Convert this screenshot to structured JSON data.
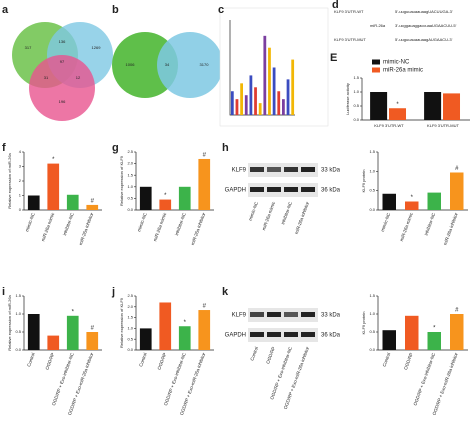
{
  "figure": {
    "panels": [
      "a",
      "b",
      "c",
      "d",
      "E",
      "f",
      "g",
      "h",
      "i",
      "j",
      "k"
    ],
    "venn_a": [
      "317",
      "136",
      "1269",
      "97",
      "31",
      "12",
      "196"
    ],
    "venn_b": [
      "1006",
      "34",
      "3170"
    ],
    "sequences": {
      "wt_label": "KLF9 3'UTR-WT",
      "wt": "5'-uuguuauaauaagUACUUGA-3'",
      "mir_label": "miR-26a",
      "mir": "3'-ucggauaggaccuaaUGAACUU-5'",
      "mut_label": "KLF9 3'UTR-MUT",
      "mut": "5'-uuguuauaauaagAUGAACU-3'"
    },
    "blot_h": {
      "rows": [
        "KLF9",
        "GAPDH"
      ],
      "sizes": [
        "33 kDa",
        "36 kDa"
      ]
    },
    "blot_k": {
      "rows": [
        "KLF9",
        "GAPDH"
      ],
      "sizes": [
        "33 kDa",
        "36 kDa"
      ]
    }
  },
  "chart_data": [
    {
      "type": "bar",
      "values": [
        0.3,
        0.2,
        0.4,
        0.25,
        0.5,
        0.35,
        0.15,
        1.0,
        0.85,
        0.6,
        0.3,
        0.2,
        0.45,
        0.7
      ],
      "colors": [
        "#3b4cc0",
        "#e03c31",
        "#f2b705",
        "#7b3fa0",
        "#3b4cc0",
        "#e03c31",
        "#f2b705",
        "#7b3fa0",
        "#f2b705",
        "#3b4cc0",
        "#e03c31",
        "#7b3fa0",
        "#3b4cc0",
        "#f2b705"
      ],
      "ylim": [
        0,
        1.2
      ]
    },
    {
      "type": "grouped-bar",
      "ylabel": "Luciferase activity",
      "categories": [
        "KLF9 3'UTR-WT",
        "KLF9 3'UTR-MUT"
      ],
      "series": [
        {
          "name": "mimic-NC",
          "color": "#111111",
          "values": [
            1.0,
            1.0
          ],
          "marks": [
            null,
            null
          ]
        },
        {
          "name": "miR-26a mimic",
          "color": "#f05a22",
          "values": [
            0.42,
            0.95
          ],
          "marks": [
            "*",
            null
          ]
        }
      ],
      "ylim": [
        0,
        1.5
      ],
      "yticks": [
        {
          "value": 0,
          "label": "0.0"
        },
        0.5,
        {
          "value": 1,
          "label": "1.0"
        },
        1.5
      ],
      "legend": "top"
    },
    {
      "type": "bar",
      "ylabel": "Relative expression of miR-26a",
      "categories": [
        "mimic-NC",
        "miR-26a mimic",
        "inhibitor-NC",
        "miR-26a inhibitor"
      ],
      "values": [
        1.0,
        3.2,
        1.05,
        0.35
      ],
      "colors": [
        "#111111",
        "#f05a22",
        "#3cb34a",
        "#f7941d"
      ],
      "marks": [
        null,
        "*",
        null,
        "#"
      ],
      "ylim": [
        0,
        4
      ],
      "yticks": [
        0,
        1,
        2,
        3,
        4
      ]
    },
    {
      "type": "bar",
      "ylabel": "Relative expression of KLF9",
      "categories": [
        "mimic-NC",
        "miR-26a mimic",
        "inhibitor-NC",
        "miR-26a inhibitor"
      ],
      "values": [
        1.0,
        0.45,
        1.0,
        2.2
      ],
      "colors": [
        "#111111",
        "#f05a22",
        "#3cb34a",
        "#f7941d"
      ],
      "marks": [
        null,
        "*",
        null,
        "#"
      ],
      "ylim": [
        0,
        2.5
      ],
      "yticks": [
        {
          "value": 0,
          "label": "0.0"
        },
        0.5,
        {
          "value": 1,
          "label": "1.0"
        },
        1.5,
        {
          "value": 2,
          "label": "2.0"
        },
        2.5
      ]
    },
    {
      "type": "bar",
      "ylabel": "KLF9 protein",
      "categories": [
        "mimic-NC",
        "miR-26a mimic",
        "inhibitor-NC",
        "miR-26a inhibitor"
      ],
      "values": [
        0.42,
        0.22,
        0.45,
        0.97
      ],
      "colors": [
        "#111111",
        "#f05a22",
        "#3cb34a",
        "#f7941d"
      ],
      "marks": [
        null,
        "*",
        null,
        "#"
      ],
      "ylim": [
        0,
        1.5
      ],
      "yticks": [
        {
          "value": 0,
          "label": "0.0"
        },
        0.5,
        {
          "value": 1,
          "label": "1.0"
        },
        1.5
      ]
    },
    {
      "type": "bar",
      "ylabel": "Relative expression of miR-26a",
      "categories": [
        "Control",
        "OGD/RP",
        "OGD/RP + Exo-inhibitor-NC",
        "OGD/RP + Exo-miR-26a inhibitor"
      ],
      "values": [
        1.0,
        0.4,
        0.95,
        0.5
      ],
      "colors": [
        "#111111",
        "#f05a22",
        "#3cb34a",
        "#f7941d"
      ],
      "marks": [
        null,
        null,
        "*",
        "#"
      ],
      "ylim": [
        0,
        1.5
      ],
      "yticks": [
        {
          "value": 0,
          "label": "0.0"
        },
        0.5,
        {
          "value": 1,
          "label": "1.0"
        },
        1.5
      ]
    },
    {
      "type": "bar",
      "ylabel": "Relative expression of KLF9",
      "categories": [
        "Control",
        "OGD/RP",
        "OGD/RP + Exo-inhibitor-NC",
        "OGD/RP + Exo-miR-26a inhibitor"
      ],
      "values": [
        1.0,
        2.2,
        1.1,
        1.85
      ],
      "colors": [
        "#111111",
        "#f05a22",
        "#3cb34a",
        "#f7941d"
      ],
      "marks": [
        null,
        null,
        "*",
        "#"
      ],
      "ylim": [
        0,
        2.5
      ],
      "yticks": [
        {
          "value": 0,
          "label": "0.0"
        },
        0.5,
        {
          "value": 1,
          "label": "1.0"
        },
        1.5,
        {
          "value": 2,
          "label": "2.0"
        },
        2.5
      ]
    },
    {
      "type": "bar",
      "ylabel": "KLF9 protein",
      "categories": [
        "Control",
        "OGD/RP",
        "OGD/RP + Exo-inhibitor-NC",
        "OGD/RP + Exo-miR-26a inhibitor"
      ],
      "values": [
        0.55,
        0.95,
        0.5,
        1.0
      ],
      "colors": [
        "#111111",
        "#f05a22",
        "#3cb34a",
        "#f7941d"
      ],
      "marks": [
        null,
        null,
        "*",
        "#"
      ],
      "ylim": [
        0,
        1.5
      ],
      "yticks": [
        {
          "value": 0,
          "label": "0.0"
        },
        0.5,
        {
          "value": 1,
          "label": "1.0"
        },
        1.5
      ]
    }
  ]
}
